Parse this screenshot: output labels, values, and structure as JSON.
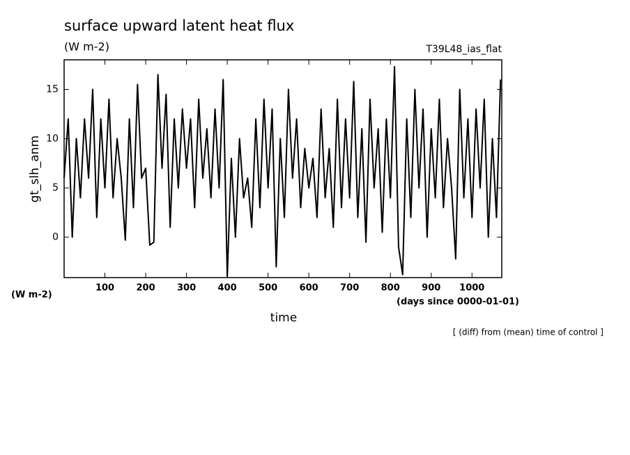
{
  "chart_data": {
    "type": "line",
    "title": "surface upward latent heat flux",
    "subtitle": "(W m-2)",
    "run_label": "T39L48_ias_flat",
    "y_label": "gt_slh_anm",
    "y_unit": "(W m-2)",
    "x_unit": "(days since 0000-01-01)",
    "x_label": "time",
    "note": "[ (diff) from (mean) time of control ]",
    "xlim": [
      0,
      1073
    ],
    "ylim": [
      -4.1,
      18
    ],
    "xticks": [
      100,
      200,
      300,
      400,
      500,
      600,
      700,
      800,
      900,
      1000
    ],
    "yticks": [
      0,
      5,
      10,
      15
    ],
    "x": [
      0,
      10,
      20,
      30,
      40,
      50,
      60,
      70,
      80,
      90,
      100,
      110,
      120,
      130,
      140,
      150,
      160,
      170,
      180,
      190,
      200,
      210,
      220,
      230,
      240,
      250,
      260,
      270,
      280,
      290,
      300,
      310,
      320,
      330,
      340,
      350,
      360,
      370,
      380,
      390,
      400,
      410,
      420,
      430,
      440,
      450,
      460,
      470,
      480,
      490,
      500,
      510,
      520,
      530,
      540,
      550,
      560,
      570,
      580,
      590,
      600,
      610,
      620,
      630,
      640,
      650,
      660,
      670,
      680,
      690,
      700,
      710,
      720,
      730,
      740,
      750,
      760,
      770,
      780,
      790,
      800,
      810,
      820,
      830,
      840,
      850,
      860,
      870,
      880,
      890,
      900,
      910,
      920,
      930,
      940,
      950,
      960,
      970,
      980,
      990,
      1000,
      1010,
      1020,
      1030,
      1040,
      1050,
      1060,
      1070
    ],
    "series": [
      {
        "color": "#000000",
        "values": [
          6,
          12,
          0,
          10,
          4,
          12,
          6,
          15,
          2,
          12,
          5,
          14,
          4,
          10,
          6,
          -0.3,
          12,
          3,
          15.5,
          6,
          7,
          -0.8,
          -0.5,
          16.5,
          7,
          14.5,
          1,
          12,
          5,
          13,
          7,
          12,
          3,
          14,
          6,
          11,
          4,
          13,
          5,
          16,
          -4,
          8,
          0,
          10,
          4,
          6,
          1,
          12,
          3,
          14,
          5,
          13,
          -3,
          10,
          2,
          15,
          6,
          12,
          3,
          9,
          5,
          8,
          2,
          13,
          4,
          9,
          1,
          14,
          3,
          12,
          4,
          15.8,
          2,
          11,
          -0.5,
          14,
          5,
          11,
          0.5,
          12,
          4,
          17.3,
          -1,
          -3.8,
          12,
          2,
          15,
          5,
          13,
          0,
          11,
          4,
          14,
          3,
          10,
          5,
          -2.2,
          15,
          4,
          12,
          2,
          13,
          5,
          14,
          0,
          10,
          2,
          16
        ]
      }
    ]
  }
}
